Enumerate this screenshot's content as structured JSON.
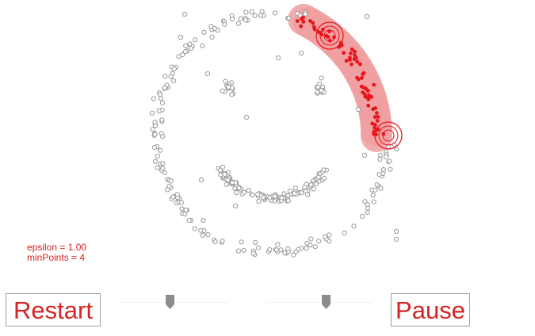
{
  "params": {
    "epsilon_text": "epsilon = 1.00",
    "minpoints_text": "minPoints = 4"
  },
  "controls": {
    "restart_label": "Restart",
    "pause_label": "Pause",
    "epsilon_slider_value": 0.43,
    "minpoints_slider_value": 0.53
  },
  "colors": {
    "accent": "#d62222",
    "cluster_point": "#e8141e",
    "cluster_halo": "#f0a0a0",
    "unvisited_point": "#999999"
  }
}
